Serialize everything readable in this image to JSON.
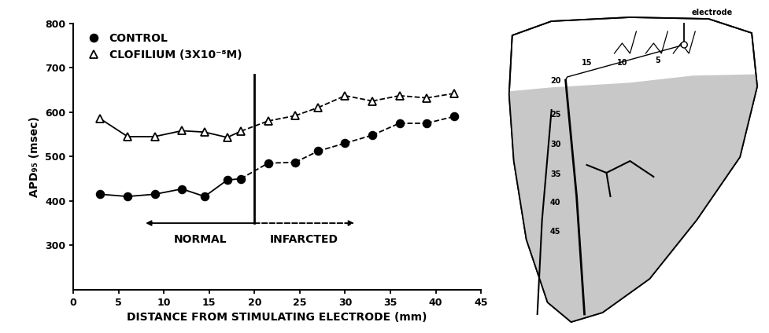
{
  "chart_data": {
    "type": "line",
    "x_label": "DISTANCE FROM STIMULATING ELECTRODE (mm)",
    "y_label": "APD₉₅ (msec)",
    "xlim": [
      0,
      45
    ],
    "xticks": [
      0,
      5,
      10,
      15,
      20,
      25,
      30,
      35,
      40,
      45
    ],
    "ylim": [
      200,
      800
    ],
    "yticks": [
      300,
      400,
      500,
      600,
      700,
      800
    ],
    "legend": "upper left",
    "divider": {
      "x": 20,
      "y": [
        350,
        685
      ]
    },
    "regions": [
      {
        "label": "NORMAL",
        "from": 8,
        "to": 20,
        "line_style": "solid"
      },
      {
        "label": "INFARCTED",
        "from": 20,
        "to": 31,
        "line_style": "dashed"
      }
    ],
    "x": [
      3,
      6,
      9,
      12,
      14.5,
      17,
      18.5,
      21.5,
      24.5,
      27,
      30,
      33,
      36,
      39,
      42
    ],
    "series": [
      {
        "name": "CONTROL",
        "color": "#000000",
        "marker": "circle",
        "values": [
          415,
          410,
          415,
          427,
          410,
          447,
          450,
          485,
          487,
          512,
          530,
          548,
          575,
          575,
          590
        ]
      },
      {
        "name": "CLOFILIUM (3X10⁻⁸M)",
        "color": "#000000",
        "marker": "open_triangle",
        "values": [
          585,
          545,
          545,
          558,
          555,
          543,
          557,
          580,
          592,
          610,
          637,
          625,
          637,
          632,
          642
        ]
      }
    ]
  },
  "diagram": {
    "electrode_label": "electrode",
    "distance_labels": [
      5,
      10,
      15,
      20,
      25,
      30,
      35,
      40,
      45
    ]
  }
}
